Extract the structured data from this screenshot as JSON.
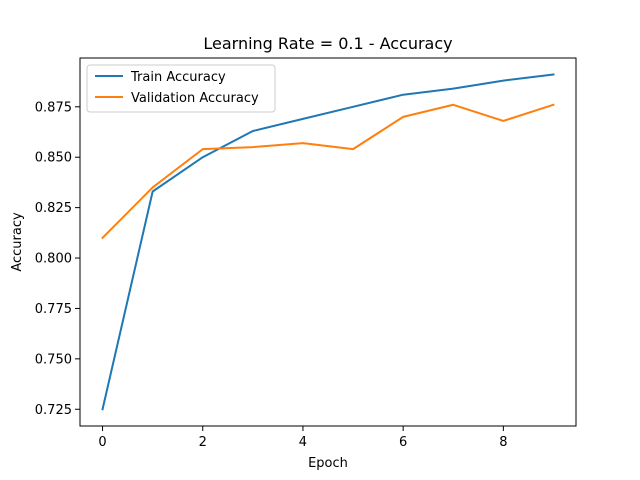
{
  "chart_data": {
    "type": "line",
    "title": "Learning Rate = 0.1 - Accuracy",
    "xlabel": "Epoch",
    "ylabel": "Accuracy",
    "x": [
      0,
      1,
      2,
      3,
      4,
      5,
      6,
      7,
      8,
      9
    ],
    "xlim": [
      -0.45,
      9.45
    ],
    "ylim": [
      0.7167,
      0.8992
    ],
    "xticks": [
      0,
      2,
      4,
      6,
      8
    ],
    "yticks": [
      0.725,
      0.75,
      0.775,
      0.8,
      0.825,
      0.85,
      0.875
    ],
    "grid": false,
    "legend_position": "top-left",
    "series": [
      {
        "name": "Train Accuracy",
        "color": "#1f77b4",
        "values": [
          0.725,
          0.833,
          0.85,
          0.863,
          0.869,
          0.875,
          0.881,
          0.884,
          0.888,
          0.891
        ]
      },
      {
        "name": "Validation Accuracy",
        "color": "#ff7f0e",
        "values": [
          0.81,
          0.835,
          0.854,
          0.855,
          0.857,
          0.854,
          0.87,
          0.876,
          0.868,
          0.876
        ]
      }
    ]
  }
}
